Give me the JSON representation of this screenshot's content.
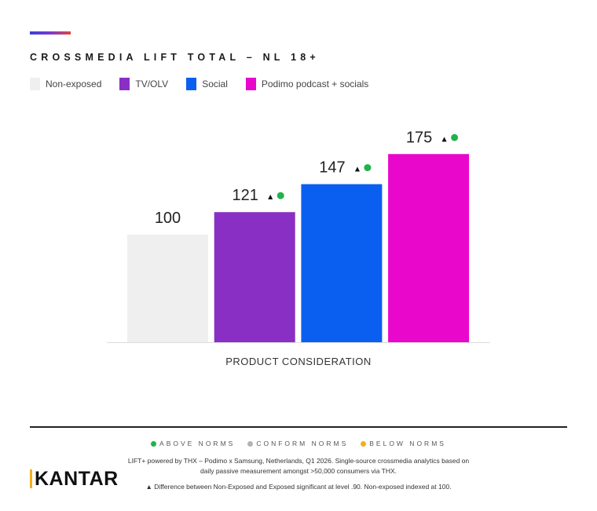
{
  "title": "CROSSMEDIA LIFT TOTAL – NL 18+",
  "legend": [
    {
      "label": "Non-exposed",
      "color": "#efefef"
    },
    {
      "label": "TV/OLV",
      "color": "#8a2fc4"
    },
    {
      "label": "Social",
      "color": "#0b5ff0"
    },
    {
      "label": "Podimo podcast + socials",
      "color": "#e907cc"
    }
  ],
  "chart_data": {
    "type": "bar",
    "title": "CROSSMEDIA LIFT TOTAL – NL 18+",
    "xlabel": "PRODUCT CONSIDERATION",
    "ylabel": "",
    "categories": [
      "Non-exposed",
      "TV/OLV",
      "Social",
      "Podimo podcast + socials"
    ],
    "values": [
      100,
      121,
      147,
      175
    ],
    "labels": [
      "100",
      "121",
      "147",
      "175"
    ],
    "colors": [
      "#efefef",
      "#8a2fc4",
      "#0b5ff0",
      "#e907cc"
    ],
    "significance": [
      false,
      true,
      true,
      true
    ],
    "norm_status": [
      null,
      "above",
      "above",
      "above"
    ],
    "ylim": [
      0,
      200
    ],
    "grid": false,
    "legend_position": "top-left"
  },
  "norms_legend": [
    {
      "label": "ABOVE NORMS",
      "color": "#22b24c"
    },
    {
      "label": "CONFORM NORMS",
      "color": "#b3b3b3"
    },
    {
      "label": "BELOW NORMS",
      "color": "#f2b01e"
    }
  ],
  "significance_marker": "▲",
  "footnote": {
    "line1": "LIFT+ powered by THX – Podimo x Samsung, Netherlands, Q1 2026. Single-source crossmedia analytics based on daily passive measurement amongst >50,000 consumers via THX.",
    "line2": "▲ Difference between Non-Exposed and Exposed significant at level .90. Non-exposed indexed at 100."
  },
  "brand": {
    "name": "KANTAR",
    "accent_color": "#f2b01e"
  }
}
